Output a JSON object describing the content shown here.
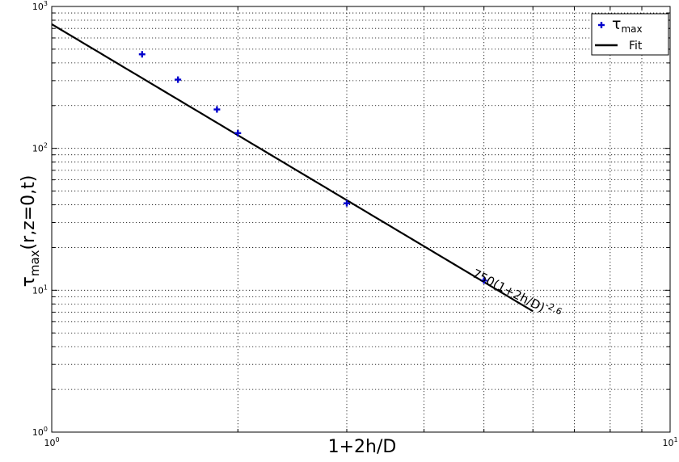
{
  "chart_data": {
    "type": "scatter",
    "xscale": "log",
    "yscale": "log",
    "xlim": [
      1,
      10
    ],
    "ylim": [
      1,
      1000
    ],
    "x_ticks": [
      {
        "value": 1,
        "base": "10",
        "exp": "0"
      },
      {
        "value": 10,
        "base": "10",
        "exp": "1"
      }
    ],
    "y_ticks": [
      {
        "value": 1,
        "base": "10",
        "exp": "0"
      },
      {
        "value": 10,
        "base": "10",
        "exp": "1"
      },
      {
        "value": 100,
        "base": "10",
        "exp": "2"
      },
      {
        "value": 1000,
        "base": "10",
        "exp": "3"
      }
    ],
    "xlabel": "1+2h/D",
    "ylabel": {
      "main": "τ",
      "sub": "max",
      "tail": "(r,z=0,t)"
    },
    "grid": true,
    "legend_position": "top-right",
    "series": [
      {
        "name": {
          "main": "τ",
          "sub": "max"
        },
        "kind": "points",
        "marker": "plus",
        "color": "#0000cc",
        "x": [
          1.4,
          1.6,
          1.85,
          2.0,
          3.0,
          5.0
        ],
        "y": [
          460,
          305,
          188,
          128,
          41,
          11.7
        ]
      },
      {
        "name": "Fit",
        "kind": "line",
        "color": "#000000",
        "coefficient": 750,
        "exponent": -2.6,
        "x_range": [
          1.0,
          6.0
        ]
      }
    ],
    "annotation": {
      "main": "750(1+2h/D)",
      "sup": "-2.6",
      "x": 5.6,
      "y": 8.8
    }
  }
}
